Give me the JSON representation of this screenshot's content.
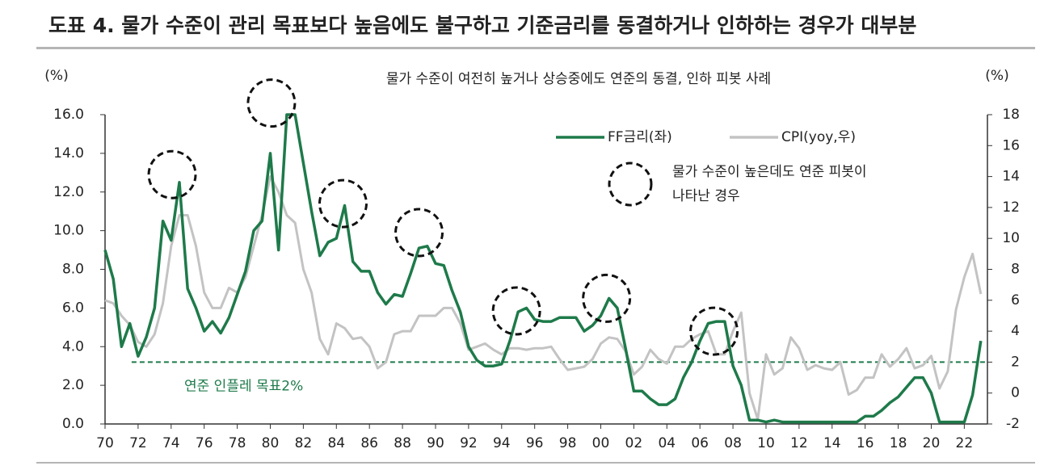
{
  "chart_data": {
    "type": "line",
    "title": "도표 4. 물가 수준이 관리 목표보다 높음에도 불구하고 기준금리를 동결하거나 인하하는 경우가 대부분",
    "subtitle": "물가 수준이 여전히 높거나 상승중에도 연준의 동결, 인하 피봇 사례",
    "y_label": "(%)",
    "y2_label": "(%)",
    "x": [
      1970,
      1970.5,
      1971,
      1971.5,
      1972,
      1972.5,
      1973,
      1973.5,
      1974,
      1974.5,
      1975,
      1975.5,
      1976,
      1976.5,
      1977,
      1977.5,
      1978,
      1978.5,
      1979,
      1979.5,
      1980,
      1980.5,
      1981,
      1981.5,
      1982,
      1982.5,
      1983,
      1983.5,
      1984,
      1984.5,
      1985,
      1985.5,
      1986,
      1986.5,
      1987,
      1987.5,
      1988,
      1988.5,
      1989,
      1989.5,
      1990,
      1990.5,
      1991,
      1991.5,
      1992,
      1992.5,
      1993,
      1993.5,
      1994,
      1994.5,
      1995,
      1995.5,
      1996,
      1996.5,
      1997,
      1997.5,
      1998,
      1998.5,
      1999,
      1999.5,
      2000,
      2000.5,
      2001,
      2001.5,
      2002,
      2002.5,
      2003,
      2003.5,
      2004,
      2004.5,
      2005,
      2005.5,
      2006,
      2006.5,
      2007,
      2007.5,
      2008,
      2008.5,
      2009,
      2009.5,
      2010,
      2010.5,
      2011,
      2011.5,
      2012,
      2012.5,
      2013,
      2013.5,
      2014,
      2014.5,
      2015,
      2015.5,
      2016,
      2016.5,
      2017,
      2017.5,
      2018,
      2018.5,
      2019,
      2019.5,
      2020,
      2020.5,
      2021,
      2021.5,
      2022,
      2022.5,
      2023
    ],
    "series": [
      {
        "name": "FF금리(좌)",
        "color": "#1e7a4a",
        "axis": "y",
        "values": [
          9.0,
          7.5,
          4.0,
          5.2,
          3.5,
          4.5,
          6.0,
          10.5,
          9.5,
          12.5,
          7.0,
          6.0,
          4.8,
          5.3,
          4.7,
          5.5,
          6.7,
          7.9,
          10.0,
          10.5,
          14.0,
          9.0,
          16.0,
          16.0,
          13.5,
          11.0,
          8.7,
          9.4,
          9.6,
          11.3,
          8.4,
          7.9,
          7.9,
          6.8,
          6.2,
          6.7,
          6.6,
          7.8,
          9.1,
          9.2,
          8.3,
          8.2,
          6.9,
          5.8,
          4.0,
          3.3,
          3.0,
          3.0,
          3.1,
          4.3,
          5.8,
          6.0,
          5.4,
          5.3,
          5.3,
          5.5,
          5.5,
          5.5,
          4.8,
          5.1,
          5.6,
          6.5,
          6.0,
          3.9,
          1.7,
          1.7,
          1.3,
          1.0,
          1.0,
          1.3,
          2.4,
          3.2,
          4.3,
          5.2,
          5.3,
          5.3,
          3.0,
          2.0,
          0.2,
          0.2,
          0.1,
          0.2,
          0.1,
          0.1,
          0.1,
          0.1,
          0.1,
          0.1,
          0.1,
          0.1,
          0.1,
          0.1,
          0.4,
          0.4,
          0.7,
          1.1,
          1.4,
          1.9,
          2.4,
          2.4,
          1.6,
          0.1,
          0.1,
          0.1,
          0.1,
          1.5,
          4.3
        ]
      },
      {
        "name": "CPI(yoy,우)",
        "color": "#c3c3c3",
        "axis": "y2",
        "values": [
          6.0,
          5.8,
          5.0,
          4.4,
          3.3,
          3.0,
          3.8,
          5.8,
          9.5,
          11.5,
          11.5,
          9.5,
          6.5,
          5.5,
          5.5,
          6.8,
          6.5,
          7.5,
          9.5,
          11.5,
          14.0,
          13.0,
          11.5,
          11.0,
          8.0,
          6.5,
          3.5,
          2.5,
          4.5,
          4.2,
          3.5,
          3.6,
          3.0,
          1.6,
          2.0,
          3.8,
          4.0,
          4.0,
          5.0,
          5.0,
          5.0,
          5.5,
          5.5,
          4.5,
          2.8,
          3.0,
          3.2,
          2.8,
          2.5,
          2.9,
          2.9,
          2.8,
          2.9,
          2.9,
          3.0,
          2.2,
          1.5,
          1.6,
          1.7,
          2.2,
          3.2,
          3.6,
          3.5,
          2.7,
          1.2,
          1.7,
          2.8,
          2.2,
          1.9,
          3.0,
          3.0,
          3.5,
          3.8,
          4.0,
          2.5,
          2.5,
          4.0,
          5.2,
          0.0,
          -1.7,
          2.5,
          1.2,
          1.6,
          3.6,
          2.9,
          1.5,
          1.8,
          1.6,
          1.5,
          2.0,
          -0.1,
          0.2,
          1.0,
          1.0,
          2.5,
          1.7,
          2.2,
          2.9,
          1.6,
          1.8,
          2.4,
          0.3,
          1.4,
          5.4,
          7.5,
          9.0,
          6.4
        ]
      }
    ],
    "xlim": [
      1970,
      2023.4
    ],
    "xticks": [
      {
        "value": 1970,
        "label": "70"
      },
      {
        "value": 1972,
        "label": "72"
      },
      {
        "value": 1974,
        "label": "74"
      },
      {
        "value": 1976,
        "label": "76"
      },
      {
        "value": 1978,
        "label": "78"
      },
      {
        "value": 1980,
        "label": "80"
      },
      {
        "value": 1982,
        "label": "82"
      },
      {
        "value": 1984,
        "label": "84"
      },
      {
        "value": 1986,
        "label": "86"
      },
      {
        "value": 1988,
        "label": "88"
      },
      {
        "value": 1990,
        "label": "90"
      },
      {
        "value": 1992,
        "label": "92"
      },
      {
        "value": 1994,
        "label": "94"
      },
      {
        "value": 1996,
        "label": "96"
      },
      {
        "value": 1998,
        "label": "98"
      },
      {
        "value": 2000,
        "label": "00"
      },
      {
        "value": 2002,
        "label": "02"
      },
      {
        "value": 2004,
        "label": "04"
      },
      {
        "value": 2006,
        "label": "06"
      },
      {
        "value": 2008,
        "label": "08"
      },
      {
        "value": 2010,
        "label": "10"
      },
      {
        "value": 2012,
        "label": "12"
      },
      {
        "value": 2014,
        "label": "14"
      },
      {
        "value": 2016,
        "label": "16"
      },
      {
        "value": 2018,
        "label": "18"
      },
      {
        "value": 2020,
        "label": "20"
      },
      {
        "value": 2022,
        "label": "22"
      }
    ],
    "ylim": [
      0,
      16
    ],
    "yticks": [
      {
        "value": 0,
        "label": "0.0"
      },
      {
        "value": 2,
        "label": "2.0"
      },
      {
        "value": 4,
        "label": "4.0"
      },
      {
        "value": 6,
        "label": "6.0"
      },
      {
        "value": 8,
        "label": "8.0"
      },
      {
        "value": 10,
        "label": "10.0"
      },
      {
        "value": 12,
        "label": "12.0"
      },
      {
        "value": 14,
        "label": "14.0"
      },
      {
        "value": 16,
        "label": "16.0"
      }
    ],
    "y2lim": [
      -2,
      18
    ],
    "y2ticks": [
      -2,
      0,
      2,
      4,
      6,
      8,
      10,
      12,
      14,
      16,
      18
    ],
    "reference_line": {
      "value": 2,
      "axis": "y2",
      "color": "#1e7a4a",
      "label": "연준 인플레 목표2%"
    },
    "pivot_markers": {
      "x": [
        1974.06,
        1980.07,
        1984.4,
        1989.0,
        1994.9,
        2000.35,
        2006.85
      ],
      "y": [
        12.9,
        16.6,
        11.4,
        9.9,
        5.85,
        6.5,
        4.8
      ]
    },
    "pivot_legend": [
      "물가 수준이 높은데도 연준 피봇이",
      "나타난 경우"
    ]
  }
}
